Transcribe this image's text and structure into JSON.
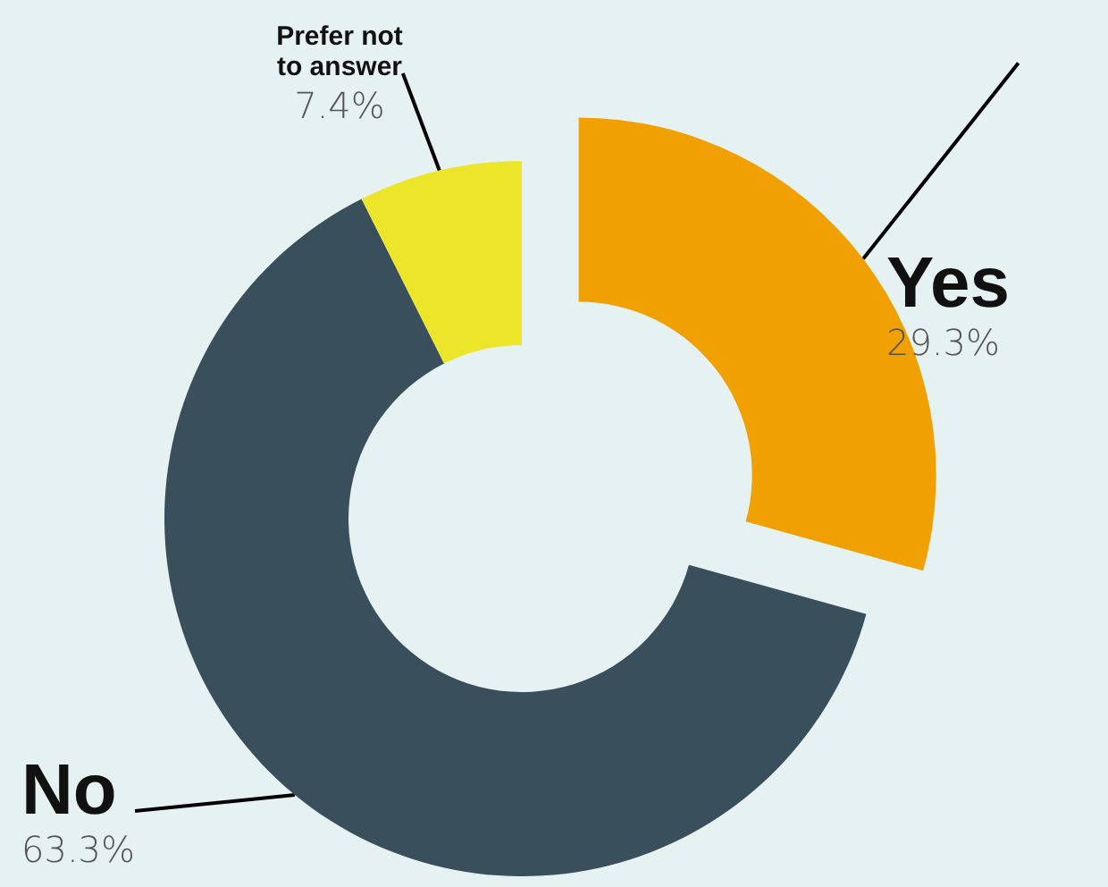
{
  "chart_data": {
    "type": "donut",
    "categories": [
      "Yes",
      "No",
      "Prefer not to answer"
    ],
    "values": [
      29.3,
      63.3,
      7.4
    ],
    "value_labels": [
      "29.3%",
      "63.3%",
      "7.4%"
    ],
    "colors": [
      "#f0a000",
      "#3a4f5c",
      "#ede52a"
    ],
    "legend": false
  }
}
